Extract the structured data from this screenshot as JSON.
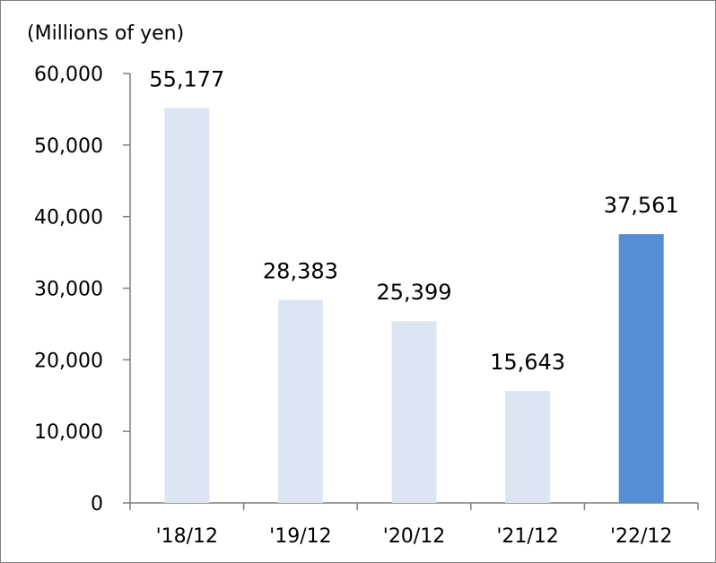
{
  "chart_data": {
    "type": "bar",
    "unit_label": "(Millions of yen)",
    "categories": [
      "'18/12",
      "'19/12",
      "'20/12",
      "'21/12",
      "'22/12"
    ],
    "values": [
      55177,
      28383,
      25399,
      15643,
      37561
    ],
    "data_labels": [
      "55,177",
      "28,383",
      "25,399",
      "15,643",
      "37,561"
    ],
    "ylim": [
      0,
      60000
    ],
    "yticks": [
      0,
      10000,
      20000,
      30000,
      40000,
      50000,
      60000
    ],
    "ytick_labels": [
      "0",
      "10,000",
      "20,000",
      "30,000",
      "40,000",
      "50,000",
      "60,000"
    ],
    "grid": false,
    "legend": "none",
    "colors": {
      "default_bar": "#dce6f2",
      "highlight_bar": "#558ed5",
      "axis": "#7f7f7f"
    },
    "highlight_index": 4
  }
}
